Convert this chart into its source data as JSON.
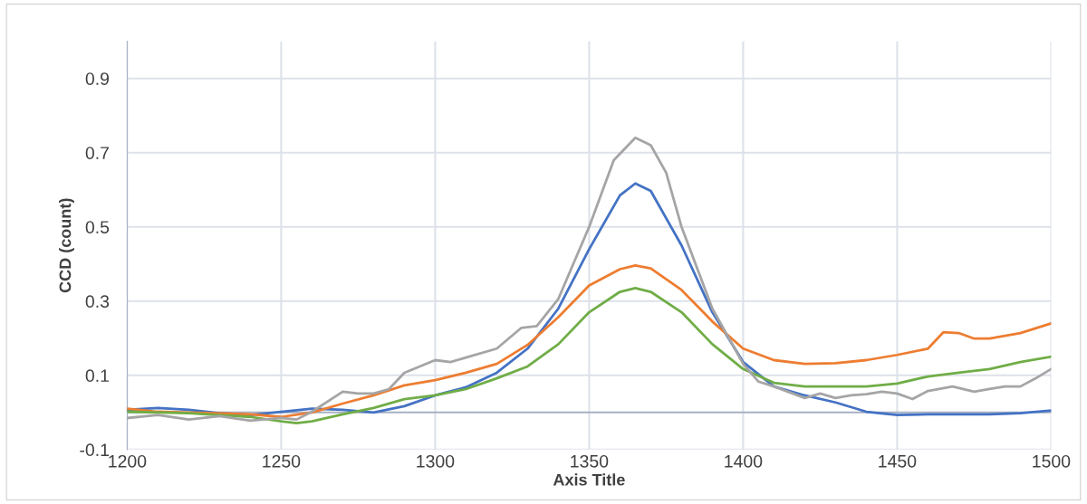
{
  "chart_data": {
    "type": "line",
    "xlabel": "Axis Title",
    "ylabel": "CCD (count)",
    "xlim": [
      1200,
      1500
    ],
    "xticks": [
      1200,
      1250,
      1300,
      1350,
      1400,
      1450,
      1500
    ],
    "ylim": [
      -0.1,
      1.0
    ],
    "yticks": [
      -0.1,
      0.1,
      0.3,
      0.5,
      0.7,
      0.9
    ],
    "grid": true,
    "legend": false,
    "marker": "none",
    "line_style": "solid",
    "ref_lines": [
      {
        "axis": "y",
        "value": 0,
        "color": "#a6b0c3"
      }
    ],
    "series": [
      {
        "color": "#4472c4",
        "x": [
          1200,
          1210,
          1220,
          1230,
          1240,
          1250,
          1260,
          1270,
          1280,
          1290,
          1300,
          1310,
          1320,
          1330,
          1340,
          1350,
          1360,
          1365,
          1370,
          1380,
          1390,
          1400,
          1410,
          1420,
          1430,
          1440,
          1450,
          1460,
          1470,
          1480,
          1490,
          1500
        ],
        "values": [
          0.007,
          0.012,
          0.007,
          -0.002,
          -0.007,
          0.002,
          0.01,
          0.007,
          0.0,
          0.017,
          0.046,
          0.068,
          0.107,
          0.172,
          0.28,
          0.44,
          0.585,
          0.617,
          0.597,
          0.45,
          0.27,
          0.136,
          0.07,
          0.046,
          0.027,
          0.002,
          -0.007,
          -0.005,
          -0.005,
          -0.005,
          -0.002,
          0.005
        ]
      },
      {
        "color": "#ed7d31",
        "x": [
          1200,
          1210,
          1220,
          1240,
          1250,
          1260,
          1270,
          1280,
          1290,
          1300,
          1310,
          1320,
          1330,
          1340,
          1350,
          1360,
          1365,
          1370,
          1380,
          1390,
          1400,
          1410,
          1420,
          1430,
          1440,
          1450,
          1460,
          1465,
          1470,
          1475,
          1480,
          1490,
          1500
        ],
        "values": [
          0.01,
          0.002,
          0.0,
          -0.005,
          -0.012,
          0.0,
          0.024,
          0.046,
          0.073,
          0.087,
          0.107,
          0.131,
          0.182,
          0.257,
          0.342,
          0.386,
          0.396,
          0.388,
          0.33,
          0.245,
          0.172,
          0.141,
          0.131,
          0.133,
          0.141,
          0.155,
          0.172,
          0.216,
          0.214,
          0.199,
          0.199,
          0.214,
          0.24
        ]
      },
      {
        "color": "#70ad47",
        "x": [
          1200,
          1220,
          1240,
          1250,
          1255,
          1260,
          1270,
          1280,
          1290,
          1300,
          1310,
          1320,
          1330,
          1340,
          1350,
          1360,
          1365,
          1370,
          1380,
          1390,
          1400,
          1410,
          1420,
          1430,
          1440,
          1450,
          1460,
          1470,
          1480,
          1490,
          1500
        ],
        "values": [
          0.002,
          -0.002,
          -0.012,
          -0.024,
          -0.029,
          -0.024,
          -0.005,
          0.012,
          0.036,
          0.046,
          0.063,
          0.092,
          0.124,
          0.184,
          0.27,
          0.325,
          0.335,
          0.325,
          0.27,
          0.184,
          0.117,
          0.08,
          0.07,
          0.07,
          0.07,
          0.078,
          0.097,
          0.107,
          0.117,
          0.136,
          0.15
        ]
      },
      {
        "color": "#a5a5a5",
        "x": [
          1200,
          1210,
          1220,
          1230,
          1240,
          1250,
          1255,
          1260,
          1270,
          1275,
          1280,
          1285,
          1290,
          1300,
          1305,
          1310,
          1320,
          1328,
          1333,
          1340,
          1350,
          1358,
          1365,
          1370,
          1375,
          1380,
          1390,
          1400,
          1405,
          1410,
          1420,
          1425,
          1430,
          1435,
          1440,
          1445,
          1450,
          1455,
          1460,
          1468,
          1475,
          1480,
          1485,
          1490,
          1495,
          1500
        ],
        "values": [
          -0.015,
          -0.007,
          -0.019,
          -0.01,
          -0.022,
          -0.015,
          -0.019,
          0.002,
          0.056,
          0.051,
          0.051,
          0.063,
          0.107,
          0.141,
          0.136,
          0.148,
          0.172,
          0.228,
          0.233,
          0.306,
          0.5,
          0.68,
          0.74,
          0.72,
          0.646,
          0.5,
          0.28,
          0.131,
          0.083,
          0.07,
          0.039,
          0.051,
          0.039,
          0.046,
          0.049,
          0.056,
          0.051,
          0.036,
          0.058,
          0.07,
          0.056,
          0.063,
          0.07,
          0.07,
          0.092,
          0.117
        ]
      }
    ]
  }
}
